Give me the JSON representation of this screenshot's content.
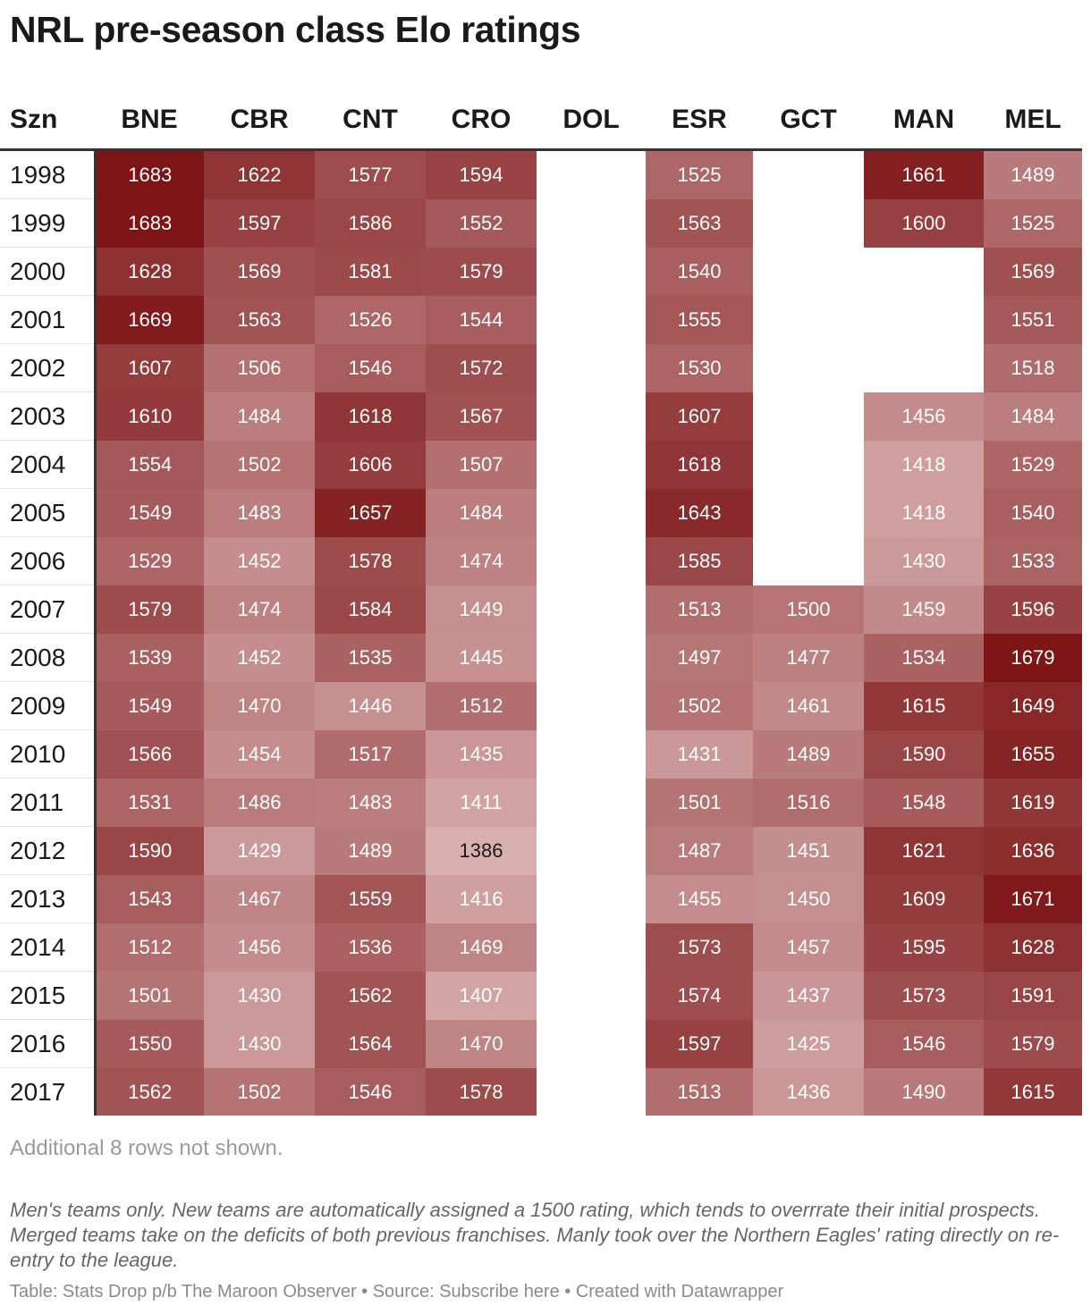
{
  "title": "NRL pre-season class Elo ratings",
  "chart_data": {
    "type": "table",
    "row_header": "Szn",
    "columns": [
      "BNE",
      "CBR",
      "CNT",
      "CRO",
      "DOL",
      "ESR",
      "GCT",
      "MAN",
      "MEL"
    ],
    "rows": [
      {
        "season": "1998",
        "values": [
          1683,
          1622,
          1577,
          1594,
          null,
          1525,
          null,
          1661,
          1489
        ]
      },
      {
        "season": "1999",
        "values": [
          1683,
          1597,
          1586,
          1552,
          null,
          1563,
          null,
          1600,
          1525
        ]
      },
      {
        "season": "2000",
        "values": [
          1628,
          1569,
          1581,
          1579,
          null,
          1540,
          null,
          null,
          1569
        ]
      },
      {
        "season": "2001",
        "values": [
          1669,
          1563,
          1526,
          1544,
          null,
          1555,
          null,
          null,
          1551
        ]
      },
      {
        "season": "2002",
        "values": [
          1607,
          1506,
          1546,
          1572,
          null,
          1530,
          null,
          null,
          1518
        ]
      },
      {
        "season": "2003",
        "values": [
          1610,
          1484,
          1618,
          1567,
          null,
          1607,
          null,
          1456,
          1484
        ]
      },
      {
        "season": "2004",
        "values": [
          1554,
          1502,
          1606,
          1507,
          null,
          1618,
          null,
          1418,
          1529
        ]
      },
      {
        "season": "2005",
        "values": [
          1549,
          1483,
          1657,
          1484,
          null,
          1643,
          null,
          1418,
          1540
        ]
      },
      {
        "season": "2006",
        "values": [
          1529,
          1452,
          1578,
          1474,
          null,
          1585,
          null,
          1430,
          1533
        ]
      },
      {
        "season": "2007",
        "values": [
          1579,
          1474,
          1584,
          1449,
          null,
          1513,
          1500,
          1459,
          1596
        ]
      },
      {
        "season": "2008",
        "values": [
          1539,
          1452,
          1535,
          1445,
          null,
          1497,
          1477,
          1534,
          1679
        ]
      },
      {
        "season": "2009",
        "values": [
          1549,
          1470,
          1446,
          1512,
          null,
          1502,
          1461,
          1615,
          1649
        ]
      },
      {
        "season": "2010",
        "values": [
          1566,
          1454,
          1517,
          1435,
          null,
          1431,
          1489,
          1590,
          1655
        ]
      },
      {
        "season": "2011",
        "values": [
          1531,
          1486,
          1483,
          1411,
          null,
          1501,
          1516,
          1548,
          1619
        ]
      },
      {
        "season": "2012",
        "values": [
          1590,
          1429,
          1489,
          1386,
          null,
          1487,
          1451,
          1621,
          1636
        ]
      },
      {
        "season": "2013",
        "values": [
          1543,
          1467,
          1559,
          1416,
          null,
          1455,
          1450,
          1609,
          1671
        ]
      },
      {
        "season": "2014",
        "values": [
          1512,
          1456,
          1536,
          1469,
          null,
          1573,
          1457,
          1595,
          1628
        ]
      },
      {
        "season": "2015",
        "values": [
          1501,
          1430,
          1562,
          1407,
          null,
          1574,
          1437,
          1573,
          1591
        ]
      },
      {
        "season": "2016",
        "values": [
          1550,
          1430,
          1564,
          1470,
          null,
          1597,
          1425,
          1546,
          1579
        ]
      },
      {
        "season": "2017",
        "values": [
          1562,
          1502,
          1546,
          1578,
          null,
          1513,
          1436,
          1490,
          1615
        ]
      }
    ],
    "color_scale": {
      "min": 1386,
      "max": 1683,
      "low_color": "#d9b0b0",
      "high_color": "#7d1416",
      "dark_text_below": 1400
    }
  },
  "notes": {
    "rows_hidden": "Additional 8 rows not shown.",
    "description": "Men's teams only. New teams are automatically assigned a 1500 rating, which tends to overrrate their initial prospects. Merged teams take on the deficits of both previous franchises. Manly took over the Northern Eagles' rating directly on re-entry to the league.",
    "footer": "Table: Stats Drop p/b The Maroon Observer • Source: Subscribe here • Created with Datawrapper"
  }
}
